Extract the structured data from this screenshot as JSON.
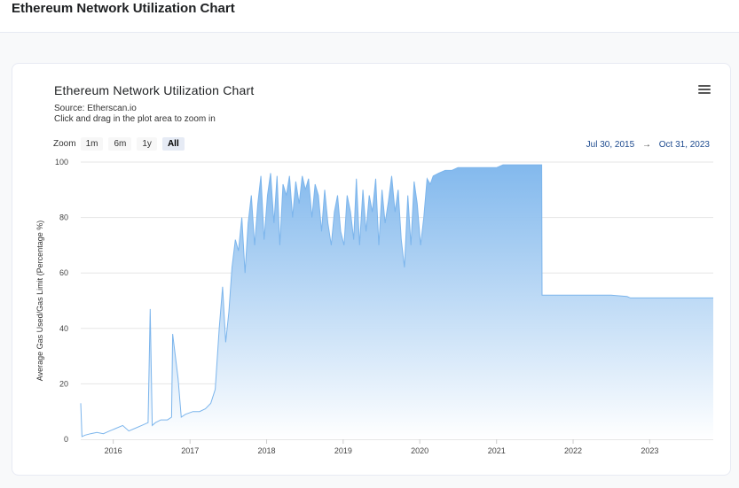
{
  "page": {
    "heading": "Ethereum Network Utilization Chart"
  },
  "card": {
    "title": "Ethereum Network Utilization Chart",
    "source": "Source: Etherscan.io",
    "hint": "Click and drag in the plot area to zoom in",
    "menu_icon": "hamburger-menu-icon"
  },
  "zoom": {
    "label": "Zoom",
    "buttons": [
      "1m",
      "6m",
      "1y",
      "All"
    ],
    "active": "All"
  },
  "range": {
    "from": "Jul 30, 2015",
    "arrow": "→",
    "to": "Oct 31, 2023"
  },
  "colors": {
    "series": "#7cb5ec",
    "fill_top": "#7cb5ec",
    "fill_bottom": "#ffffff",
    "grid": "#e6e6e6",
    "range_text": "#1e4b8f"
  },
  "chart_data": {
    "type": "area",
    "title": "Ethereum Network Utilization Chart",
    "subtitle": "Source: Etherscan.io",
    "xlabel": "",
    "ylabel": "Average Gas Used/Gas Limit (Percentage %)",
    "xlim": [
      "2015-07-30",
      "2023-10-31"
    ],
    "ylim": [
      0,
      100
    ],
    "y_ticks": [
      0,
      20,
      40,
      60,
      80,
      100
    ],
    "x_ticks": [
      "2016",
      "2017",
      "2018",
      "2019",
      "2020",
      "2021",
      "2022",
      "2023"
    ],
    "grid": true,
    "legend": "none",
    "series": [
      {
        "x": [
          "2015-07-30",
          "2015-08-05",
          "2015-08-20",
          "2015-09-15",
          "2015-10-15",
          "2015-11-15",
          "2015-12-15",
          "2016-01-15",
          "2016-02-15",
          "2016-03-15",
          "2016-04-15",
          "2016-05-15",
          "2016-06-15",
          "2016-06-25",
          "2016-07-05",
          "2016-07-20",
          "2016-08-15",
          "2016-09-15",
          "2016-10-05",
          "2016-10-10",
          "2016-10-20",
          "2016-11-05",
          "2016-11-20",
          "2016-12-10",
          "2017-01-15",
          "2017-02-15",
          "2017-03-15",
          "2017-04-10",
          "2017-05-01",
          "2017-05-20",
          "2017-06-05",
          "2017-06-20",
          "2017-07-05",
          "2017-07-20",
          "2017-08-05",
          "2017-08-20",
          "2017-09-05",
          "2017-09-20",
          "2017-10-05",
          "2017-10-20",
          "2017-11-05",
          "2017-11-20",
          "2017-12-05",
          "2017-12-20",
          "2018-01-05",
          "2018-01-20",
          "2018-02-05",
          "2018-02-20",
          "2018-03-05",
          "2018-03-20",
          "2018-04-05",
          "2018-04-20",
          "2018-05-05",
          "2018-05-20",
          "2018-06-05",
          "2018-06-20",
          "2018-07-05",
          "2018-07-20",
          "2018-08-05",
          "2018-08-20",
          "2018-09-05",
          "2018-09-20",
          "2018-10-05",
          "2018-10-20",
          "2018-11-05",
          "2018-11-20",
          "2018-12-05",
          "2018-12-20",
          "2019-01-05",
          "2019-01-20",
          "2019-02-05",
          "2019-02-20",
          "2019-03-05",
          "2019-03-20",
          "2019-04-05",
          "2019-04-20",
          "2019-05-05",
          "2019-05-20",
          "2019-06-05",
          "2019-06-20",
          "2019-07-05",
          "2019-07-20",
          "2019-08-05",
          "2019-08-20",
          "2019-09-05",
          "2019-09-20",
          "2019-10-05",
          "2019-10-20",
          "2019-11-05",
          "2019-11-20",
          "2019-12-05",
          "2019-12-20",
          "2020-01-05",
          "2020-01-20",
          "2020-02-05",
          "2020-02-20",
          "2020-03-05",
          "2020-04-01",
          "2020-05-01",
          "2020-06-01",
          "2020-07-01",
          "2020-08-01",
          "2020-09-01",
          "2020-10-01",
          "2020-11-01",
          "2020-12-01",
          "2021-01-01",
          "2021-02-01",
          "2021-03-01",
          "2021-04-01",
          "2021-05-01",
          "2021-06-01",
          "2021-07-01",
          "2021-08-04",
          "2021-08-06",
          "2021-10-01",
          "2022-01-01",
          "2022-04-01",
          "2022-07-01",
          "2022-09-15",
          "2022-10-01",
          "2023-01-01",
          "2023-04-01",
          "2023-07-01",
          "2023-10-31"
        ],
        "y": [
          13,
          1,
          1.5,
          2,
          2.5,
          2,
          3,
          4,
          5,
          3,
          4,
          5,
          6,
          47,
          5,
          6,
          7,
          7,
          8,
          38,
          32,
          22,
          8,
          9,
          10,
          10,
          11,
          13,
          18,
          40,
          55,
          35,
          46,
          62,
          72,
          68,
          80,
          60,
          78,
          88,
          70,
          85,
          95,
          72,
          88,
          96,
          78,
          95,
          70,
          92,
          88,
          95,
          80,
          93,
          85,
          95,
          90,
          94,
          80,
          92,
          88,
          75,
          90,
          78,
          70,
          82,
          88,
          75,
          70,
          88,
          82,
          72,
          94,
          70,
          90,
          75,
          88,
          82,
          94,
          70,
          90,
          78,
          86,
          95,
          82,
          90,
          72,
          62,
          88,
          70,
          93,
          85,
          70,
          80,
          94,
          92,
          95,
          96,
          97,
          97,
          98,
          98,
          98,
          98,
          98,
          98,
          98,
          99,
          99,
          99,
          99,
          99,
          99,
          99,
          52,
          52,
          52,
          52,
          52,
          51.5,
          51,
          51,
          51,
          51,
          51
        ]
      }
    ]
  }
}
